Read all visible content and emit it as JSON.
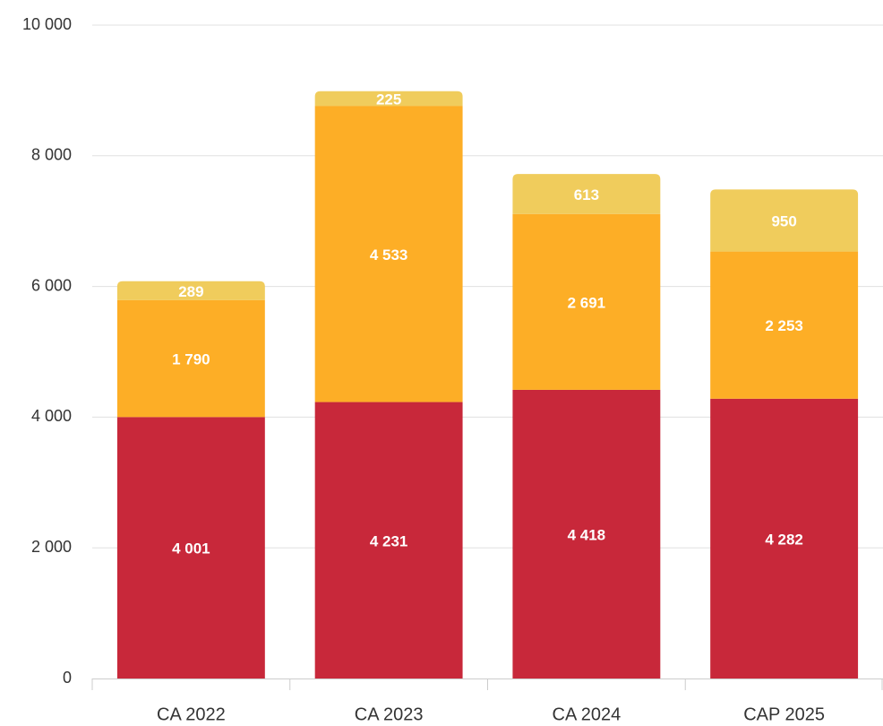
{
  "chart_data": {
    "type": "stacked_bar",
    "categories": [
      "CA 2022",
      "CA 2023",
      "CA 2024",
      "CAP 2025"
    ],
    "series": [
      {
        "color": "#c8283a",
        "values": [
          4001,
          4231,
          4418,
          4282
        ],
        "value_labels": [
          "4 001",
          "4 231",
          "4 418",
          "4 282"
        ]
      },
      {
        "color": "#fdae26",
        "values": [
          1790,
          4533,
          2691,
          2253
        ],
        "value_labels": [
          "1 790",
          "4 533",
          "2 691",
          "2 253"
        ]
      },
      {
        "color": "#f0cc5c",
        "values": [
          289,
          225,
          613,
          950
        ],
        "value_labels": [
          "289",
          "225",
          "613",
          "950"
        ]
      }
    ],
    "ylim": [
      0,
      10000
    ],
    "yticks": [
      0,
      {
        "value": 2000,
        "label": "2 000"
      },
      {
        "value": 4000,
        "label": "4 000"
      },
      {
        "value": 6000,
        "label": "6 000"
      },
      {
        "value": 8000,
        "label": "8 000"
      },
      {
        "value": 10000,
        "label": "10 000"
      }
    ],
    "grid": true
  }
}
